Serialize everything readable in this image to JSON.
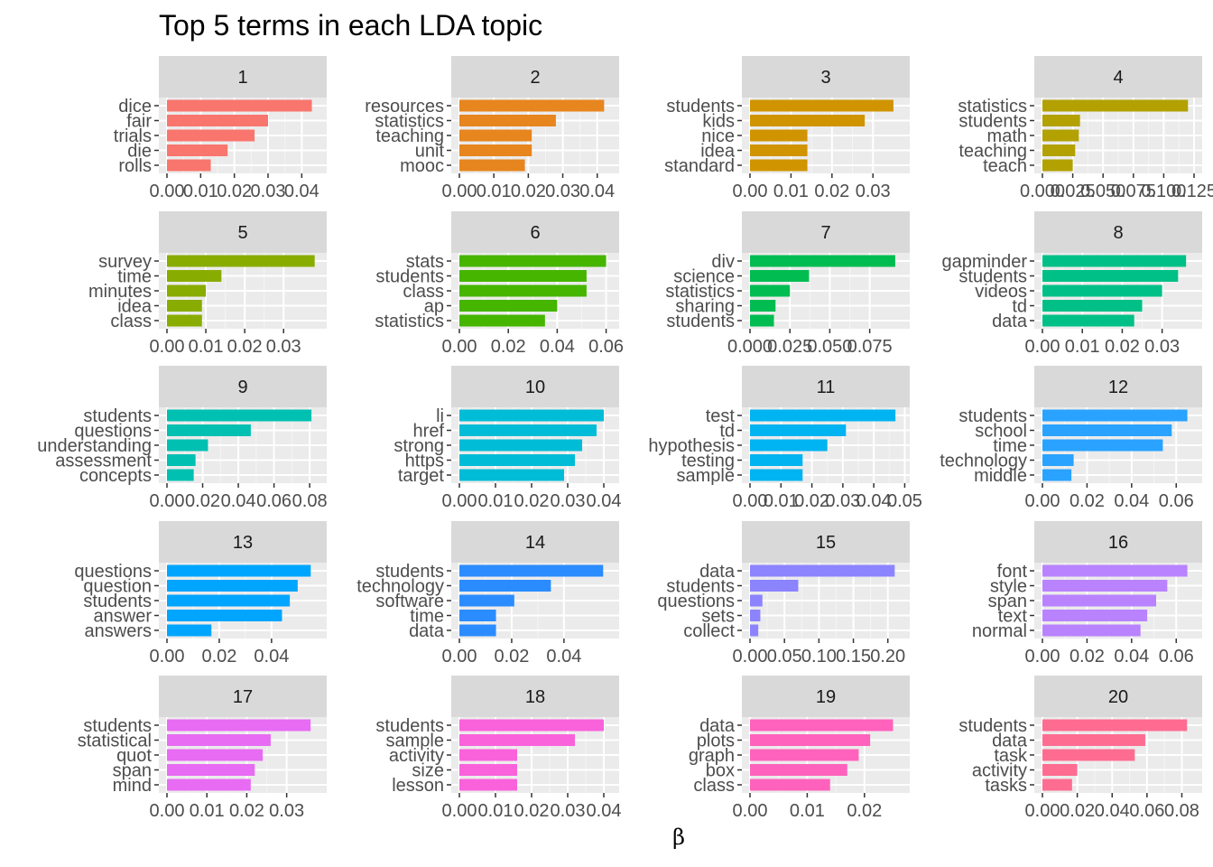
{
  "chart_data": {
    "type": "bar",
    "orientation": "horizontal",
    "title": "Top 5 terms in each LDA topic",
    "xlabel": "β",
    "ylabel": "",
    "facet_layout": "4 columns × 5 rows, free scales",
    "grid": true,
    "legend": "none",
    "panels": [
      {
        "topic": "1",
        "color": "#F8766D",
        "terms": [
          "dice",
          "fair",
          "trials",
          "die",
          "rolls"
        ],
        "values": [
          0.043,
          0.03,
          0.026,
          0.018,
          0.013
        ],
        "xlim": [
          0,
          0.045
        ],
        "ticks": [
          0.0,
          0.01,
          0.02,
          0.03,
          0.04
        ],
        "tick_labels": [
          "0.00",
          "0.01",
          "0.02",
          "0.03",
          "0.04"
        ]
      },
      {
        "topic": "2",
        "color": "#E7851E",
        "terms": [
          "resources",
          "statistics",
          "teaching",
          "unit",
          "mooc"
        ],
        "values": [
          0.042,
          0.028,
          0.021,
          0.021,
          0.019
        ],
        "xlim": [
          0,
          0.044
        ],
        "ticks": [
          0.0,
          0.01,
          0.02,
          0.03,
          0.04
        ],
        "tick_labels": [
          "0.00",
          "0.01",
          "0.02",
          "0.03",
          "0.04"
        ]
      },
      {
        "topic": "3",
        "color": "#D09400",
        "terms": [
          "students",
          "kids",
          "nice",
          "idea",
          "standard"
        ],
        "values": [
          0.035,
          0.028,
          0.014,
          0.014,
          0.014
        ],
        "xlim": [
          0,
          0.037
        ],
        "ticks": [
          0.0,
          0.01,
          0.02,
          0.03
        ],
        "tick_labels": [
          "0.00",
          "0.01",
          "0.02",
          "0.03"
        ]
      },
      {
        "topic": "4",
        "color": "#B2A100",
        "terms": [
          "statistics",
          "students",
          "math",
          "teaching",
          "teach"
        ],
        "values": [
          0.12,
          0.031,
          0.03,
          0.027,
          0.025
        ],
        "xlim": [
          0,
          0.125
        ],
        "ticks": [
          0.0,
          0.025,
          0.05,
          0.075,
          0.1,
          0.125
        ],
        "tick_labels": [
          "0.000",
          "0.025",
          "0.050",
          "0.075",
          "0.100",
          "0.125"
        ]
      },
      {
        "topic": "5",
        "color": "#89AC00",
        "terms": [
          "survey",
          "time",
          "minutes",
          "idea",
          "class"
        ],
        "values": [
          0.038,
          0.014,
          0.01,
          0.009,
          0.009
        ],
        "xlim": [
          0,
          0.039
        ],
        "ticks": [
          0.0,
          0.01,
          0.02,
          0.03
        ],
        "tick_labels": [
          "0.00",
          "0.01",
          "0.02",
          "0.03"
        ]
      },
      {
        "topic": "6",
        "color": "#45B500",
        "terms": [
          "stats",
          "students",
          "class",
          "ap",
          "statistics"
        ],
        "values": [
          0.06,
          0.052,
          0.052,
          0.04,
          0.035
        ],
        "xlim": [
          0,
          0.062
        ],
        "ticks": [
          0.0,
          0.02,
          0.04,
          0.06
        ],
        "tick_labels": [
          "0.00",
          "0.02",
          "0.04",
          "0.06"
        ]
      },
      {
        "topic": "7",
        "color": "#00BC51",
        "terms": [
          "div",
          "science",
          "statistics",
          "sharing",
          "students"
        ],
        "values": [
          0.091,
          0.037,
          0.025,
          0.016,
          0.015
        ],
        "xlim": [
          0,
          0.095
        ],
        "ticks": [
          0.0,
          0.025,
          0.05,
          0.075
        ],
        "tick_labels": [
          "0.000",
          "0.025",
          "0.050",
          "0.075"
        ]
      },
      {
        "topic": "8",
        "color": "#00C087",
        "terms": [
          "gapminder",
          "students",
          "videos",
          "td",
          "data"
        ],
        "values": [
          0.036,
          0.034,
          0.03,
          0.025,
          0.023
        ],
        "xlim": [
          0,
          0.038
        ],
        "ticks": [
          0.0,
          0.01,
          0.02,
          0.03
        ],
        "tick_labels": [
          "0.00",
          "0.01",
          "0.02",
          "0.03"
        ]
      },
      {
        "topic": "9",
        "color": "#00C0B2",
        "terms": [
          "students",
          "questions",
          "understanding",
          "assessment",
          "concepts"
        ],
        "values": [
          0.081,
          0.047,
          0.023,
          0.016,
          0.015
        ],
        "xlim": [
          0,
          0.085
        ],
        "ticks": [
          0.0,
          0.02,
          0.04,
          0.06,
          0.08
        ],
        "tick_labels": [
          "0.00",
          "0.02",
          "0.04",
          "0.06",
          "0.08"
        ]
      },
      {
        "topic": "10",
        "color": "#00BCD6",
        "terms": [
          "li",
          "href",
          "strong",
          "https",
          "target"
        ],
        "values": [
          0.04,
          0.038,
          0.034,
          0.032,
          0.029
        ],
        "xlim": [
          0,
          0.042
        ],
        "ticks": [
          0.0,
          0.01,
          0.02,
          0.03,
          0.04
        ],
        "tick_labels": [
          "0.00",
          "0.01",
          "0.02",
          "0.03",
          "0.04"
        ]
      },
      {
        "topic": "11",
        "color": "#00B3F1",
        "terms": [
          "test",
          "td",
          "hypothesis",
          "testing",
          "sample"
        ],
        "values": [
          0.047,
          0.031,
          0.025,
          0.017,
          0.017
        ],
        "xlim": [
          0,
          0.049
        ],
        "ticks": [
          0.0,
          0.01,
          0.02,
          0.03,
          0.04,
          0.05
        ],
        "tick_labels": [
          "0.00",
          "0.01",
          "0.02",
          "0.03",
          "0.04",
          "0.05"
        ]
      },
      {
        "topic": "12",
        "color": "#29A3FF",
        "terms": [
          "students",
          "school",
          "time",
          "technology",
          "middle"
        ],
        "values": [
          0.065,
          0.058,
          0.054,
          0.014,
          0.013
        ],
        "xlim": [
          0,
          0.068
        ],
        "ticks": [
          0.0,
          0.02,
          0.04,
          0.06
        ],
        "tick_labels": [
          "0.00",
          "0.02",
          "0.04",
          "0.06"
        ]
      },
      {
        "topic": "13",
        "color": "#00A5FF",
        "terms": [
          "questions",
          "question",
          "students",
          "answer",
          "answers"
        ],
        "values": [
          0.055,
          0.05,
          0.047,
          0.044,
          0.017
        ],
        "xlim": [
          0,
          0.058
        ],
        "ticks": [
          0.0,
          0.02,
          0.04
        ],
        "tick_labels": [
          "0.00",
          "0.02",
          "0.04"
        ]
      },
      {
        "topic": "14",
        "color": "#2B8CFF",
        "terms": [
          "students",
          "technology",
          "software",
          "time",
          "data"
        ],
        "values": [
          0.055,
          0.035,
          0.021,
          0.014,
          0.014
        ],
        "xlim": [
          0,
          0.058
        ],
        "ticks": [
          0.0,
          0.02,
          0.04
        ],
        "tick_labels": [
          "0.00",
          "0.02",
          "0.04"
        ]
      },
      {
        "topic": "15",
        "color": "#8C83FF",
        "terms": [
          "data",
          "students",
          "questions",
          "sets",
          "collect"
        ],
        "values": [
          0.21,
          0.07,
          0.018,
          0.015,
          0.012
        ],
        "xlim": [
          0,
          0.22
        ],
        "ticks": [
          0.0,
          0.05,
          0.1,
          0.15,
          0.2
        ],
        "tick_labels": [
          "0.00",
          "0.05",
          "0.10",
          "0.15",
          "0.20"
        ]
      },
      {
        "topic": "16",
        "color": "#B983FF",
        "terms": [
          "font",
          "style",
          "span",
          "text",
          "normal"
        ],
        "values": [
          0.065,
          0.056,
          0.051,
          0.047,
          0.044
        ],
        "xlim": [
          0,
          0.068
        ],
        "ticks": [
          0.0,
          0.02,
          0.04,
          0.06
        ],
        "tick_labels": [
          "0.00",
          "0.02",
          "0.04",
          "0.06"
        ]
      },
      {
        "topic": "17",
        "color": "#E76BF3",
        "terms": [
          "students",
          "statistical",
          "quot",
          "span",
          "mind"
        ],
        "values": [
          0.036,
          0.026,
          0.024,
          0.022,
          0.021
        ],
        "xlim": [
          0,
          0.038
        ],
        "ticks": [
          0.0,
          0.01,
          0.02,
          0.03
        ],
        "tick_labels": [
          "0.00",
          "0.01",
          "0.02",
          "0.03"
        ]
      },
      {
        "topic": "18",
        "color": "#FA62DB",
        "terms": [
          "students",
          "sample",
          "activity",
          "size",
          "lesson"
        ],
        "values": [
          0.04,
          0.032,
          0.016,
          0.016,
          0.016
        ],
        "xlim": [
          0,
          0.042
        ],
        "ticks": [
          0.0,
          0.01,
          0.02,
          0.03,
          0.04
        ],
        "tick_labels": [
          "0.00",
          "0.01",
          "0.02",
          "0.03",
          "0.04"
        ]
      },
      {
        "topic": "19",
        "color": "#FF62BC",
        "terms": [
          "data",
          "plots",
          "graph",
          "box",
          "class"
        ],
        "values": [
          0.025,
          0.021,
          0.019,
          0.017,
          0.014
        ],
        "xlim": [
          0,
          0.0265
        ],
        "ticks": [
          0.0,
          0.01,
          0.02
        ],
        "tick_labels": [
          "0.00",
          "0.01",
          "0.02"
        ]
      },
      {
        "topic": "20",
        "color": "#FF6C91",
        "terms": [
          "students",
          "data",
          "task",
          "activity",
          "tasks"
        ],
        "values": [
          0.083,
          0.059,
          0.053,
          0.02,
          0.017
        ],
        "xlim": [
          0,
          0.087
        ],
        "ticks": [
          0.0,
          0.02,
          0.04,
          0.06,
          0.08
        ],
        "tick_labels": [
          "0.00",
          "0.02",
          "0.04",
          "0.06",
          "0.08"
        ]
      }
    ]
  }
}
